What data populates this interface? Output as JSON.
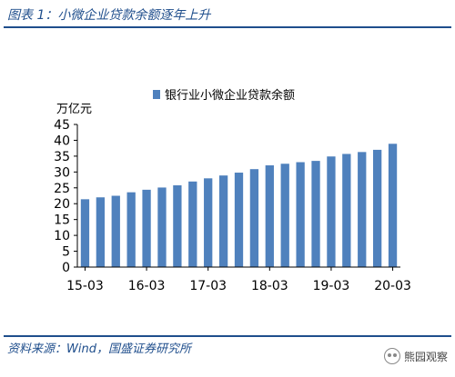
{
  "figure": {
    "title": "图表 1：小微企业贷款余额逐年上升",
    "source": "资料来源：Wind，国盛证券研究所",
    "watermark": "熊园观察",
    "watermark_icon": "wechat-icon"
  },
  "colors": {
    "bar": "#4f81bd",
    "accent": "#1f4e8c",
    "axis": "#000000"
  },
  "chart_data": {
    "type": "bar",
    "unit_label": "万亿元",
    "legend": {
      "label": "银行业小微企业贷款余额",
      "position": "top"
    },
    "series": [
      {
        "name": "银行业小微企业贷款余额",
        "values": [
          21.4,
          22.0,
          22.5,
          23.6,
          24.4,
          25.1,
          25.8,
          27.0,
          28.0,
          28.9,
          29.8,
          30.9,
          32.1,
          32.6,
          33.1,
          33.5,
          34.9,
          35.7,
          36.3,
          37.0,
          38.9
        ]
      }
    ],
    "x_tick_labels": [
      "15-03",
      "16-03",
      "17-03",
      "18-03",
      "19-03",
      "20-03"
    ],
    "x_tick_positions": [
      0,
      4,
      8,
      12,
      16,
      20
    ],
    "ylim": [
      0,
      45
    ],
    "yticks": [
      0,
      5,
      10,
      15,
      20,
      25,
      30,
      35,
      40,
      45
    ],
    "grid": false
  }
}
